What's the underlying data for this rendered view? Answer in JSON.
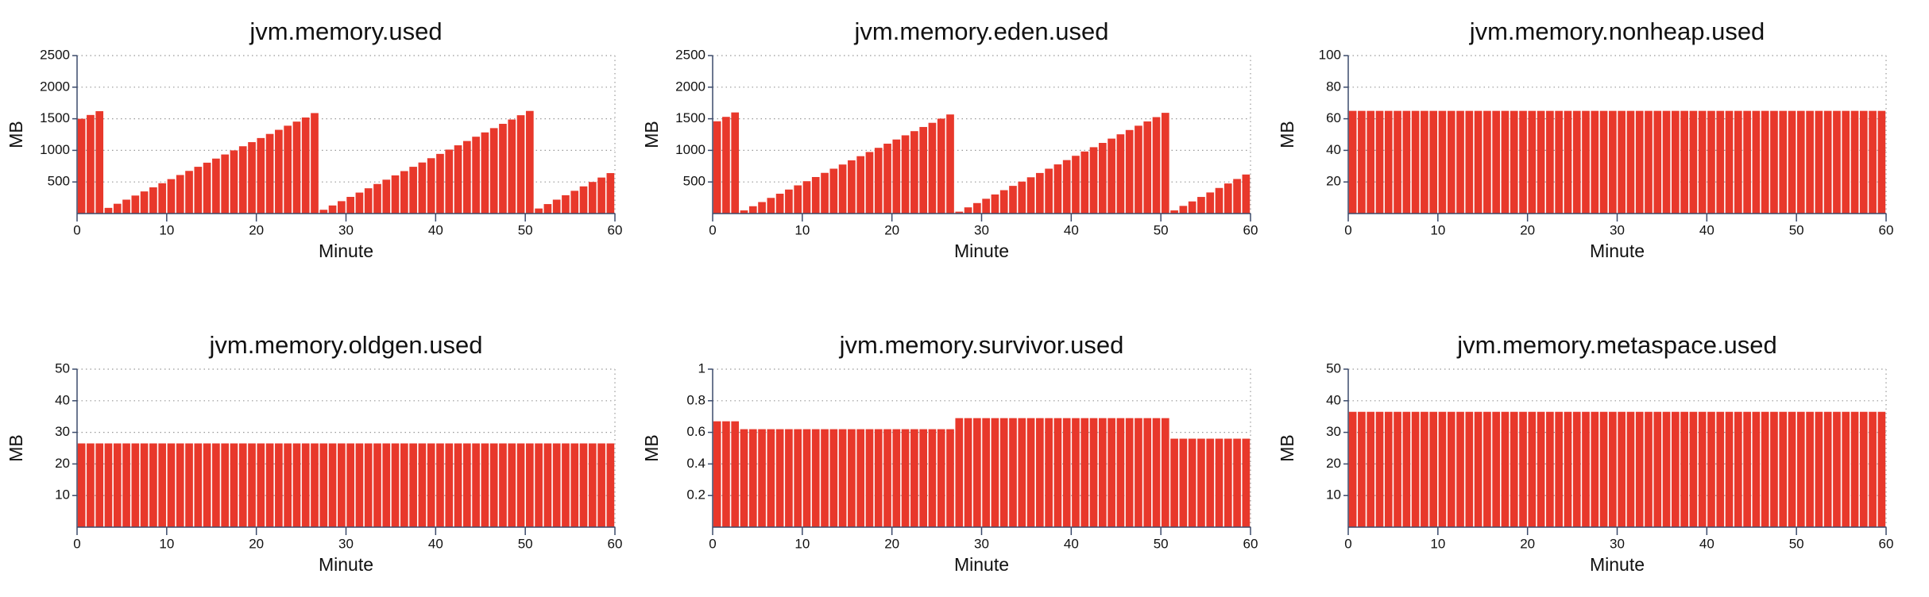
{
  "chart_data": [
    {
      "type": "bar",
      "title": "jvm.memory.used",
      "xlabel": "Minute",
      "ylabel": "MB",
      "color": "#e8382b",
      "grid": true,
      "x": [
        0,
        1,
        2,
        3,
        4,
        5,
        6,
        7,
        8,
        9,
        10,
        11,
        12,
        13,
        14,
        15,
        16,
        17,
        18,
        19,
        20,
        21,
        22,
        23,
        24,
        25,
        26,
        27,
        28,
        29,
        30,
        31,
        32,
        33,
        34,
        35,
        36,
        37,
        38,
        39,
        40,
        41,
        42,
        43,
        44,
        45,
        46,
        47,
        48,
        49,
        50,
        51,
        52,
        53,
        54,
        55,
        56,
        57,
        58,
        59
      ],
      "values": [
        1500,
        1560,
        1620,
        90,
        155,
        220,
        285,
        350,
        415,
        480,
        545,
        610,
        675,
        740,
        805,
        870,
        935,
        1000,
        1065,
        1130,
        1195,
        1260,
        1325,
        1390,
        1455,
        1520,
        1590,
        60,
        128,
        196,
        264,
        332,
        400,
        468,
        536,
        604,
        672,
        740,
        808,
        876,
        944,
        1012,
        1080,
        1148,
        1216,
        1284,
        1352,
        1420,
        1488,
        1556,
        1624,
        80,
        150,
        220,
        290,
        360,
        430,
        500,
        570,
        640
      ],
      "xlim": [
        0,
        60
      ],
      "xticks": [
        0,
        10,
        20,
        30,
        40,
        50,
        60
      ],
      "ylim": [
        0,
        2500
      ],
      "yticks": [
        500,
        1000,
        1500,
        2000,
        2500
      ]
    },
    {
      "type": "bar",
      "title": "jvm.memory.eden.used",
      "xlabel": "Minute",
      "ylabel": "MB",
      "color": "#e8382b",
      "grid": true,
      "x": [
        0,
        1,
        2,
        3,
        4,
        5,
        6,
        7,
        8,
        9,
        10,
        11,
        12,
        13,
        14,
        15,
        16,
        17,
        18,
        19,
        20,
        21,
        22,
        23,
        24,
        25,
        26,
        27,
        28,
        29,
        30,
        31,
        32,
        33,
        34,
        35,
        36,
        37,
        38,
        39,
        40,
        41,
        42,
        43,
        44,
        45,
        46,
        47,
        48,
        49,
        50,
        51,
        52,
        53,
        54,
        55,
        56,
        57,
        58,
        59
      ],
      "values": [
        1460,
        1530,
        1600,
        50,
        116,
        182,
        248,
        314,
        380,
        446,
        512,
        578,
        644,
        710,
        776,
        842,
        908,
        974,
        1040,
        1106,
        1172,
        1238,
        1304,
        1370,
        1436,
        1502,
        1568,
        30,
        98,
        166,
        234,
        302,
        370,
        438,
        506,
        574,
        642,
        710,
        778,
        846,
        914,
        982,
        1050,
        1118,
        1186,
        1254,
        1322,
        1390,
        1458,
        1526,
        1594,
        50,
        121,
        192,
        263,
        334,
        405,
        476,
        547,
        618
      ],
      "xlim": [
        0,
        60
      ],
      "xticks": [
        0,
        10,
        20,
        30,
        40,
        50,
        60
      ],
      "ylim": [
        0,
        2500
      ],
      "yticks": [
        500,
        1000,
        1500,
        2000,
        2500
      ]
    },
    {
      "type": "bar",
      "title": "jvm.memory.nonheap.used",
      "xlabel": "Minute",
      "ylabel": "MB",
      "color": "#e8382b",
      "grid": true,
      "x": [
        0,
        1,
        2,
        3,
        4,
        5,
        6,
        7,
        8,
        9,
        10,
        11,
        12,
        13,
        14,
        15,
        16,
        17,
        18,
        19,
        20,
        21,
        22,
        23,
        24,
        25,
        26,
        27,
        28,
        29,
        30,
        31,
        32,
        33,
        34,
        35,
        36,
        37,
        38,
        39,
        40,
        41,
        42,
        43,
        44,
        45,
        46,
        47,
        48,
        49,
        50,
        51,
        52,
        53,
        54,
        55,
        56,
        57,
        58,
        59
      ],
      "values": [
        65,
        65,
        65,
        65,
        65,
        65,
        65,
        65,
        65,
        65,
        65,
        65,
        65,
        65,
        65,
        65,
        65,
        65,
        65,
        65,
        65,
        65,
        65,
        65,
        65,
        65,
        65,
        65,
        65,
        65,
        65,
        65,
        65,
        65,
        65,
        65,
        65,
        65,
        65,
        65,
        65,
        65,
        65,
        65,
        65,
        65,
        65,
        65,
        65,
        65,
        65,
        65,
        65,
        65,
        65,
        65,
        65,
        65,
        65,
        65
      ],
      "xlim": [
        0,
        60
      ],
      "xticks": [
        0,
        10,
        20,
        30,
        40,
        50,
        60
      ],
      "ylim": [
        0,
        100
      ],
      "yticks": [
        20,
        40,
        60,
        80,
        100
      ]
    },
    {
      "type": "bar",
      "title": "jvm.memory.oldgen.used",
      "xlabel": "Minute",
      "ylabel": "MB",
      "color": "#e8382b",
      "grid": true,
      "x": [
        0,
        1,
        2,
        3,
        4,
        5,
        6,
        7,
        8,
        9,
        10,
        11,
        12,
        13,
        14,
        15,
        16,
        17,
        18,
        19,
        20,
        21,
        22,
        23,
        24,
        25,
        26,
        27,
        28,
        29,
        30,
        31,
        32,
        33,
        34,
        35,
        36,
        37,
        38,
        39,
        40,
        41,
        42,
        43,
        44,
        45,
        46,
        47,
        48,
        49,
        50,
        51,
        52,
        53,
        54,
        55,
        56,
        57,
        58,
        59
      ],
      "values": [
        26.5,
        26.5,
        26.5,
        26.5,
        26.5,
        26.5,
        26.5,
        26.5,
        26.5,
        26.5,
        26.5,
        26.5,
        26.5,
        26.5,
        26.5,
        26.5,
        26.5,
        26.5,
        26.5,
        26.5,
        26.5,
        26.5,
        26.5,
        26.5,
        26.5,
        26.5,
        26.5,
        26.5,
        26.5,
        26.5,
        26.5,
        26.5,
        26.5,
        26.5,
        26.5,
        26.5,
        26.5,
        26.5,
        26.5,
        26.5,
        26.5,
        26.5,
        26.5,
        26.5,
        26.5,
        26.5,
        26.5,
        26.5,
        26.5,
        26.5,
        26.5,
        26.5,
        26.5,
        26.5,
        26.5,
        26.5,
        26.5,
        26.5,
        26.5,
        26.5
      ],
      "xlim": [
        0,
        60
      ],
      "xticks": [
        0,
        10,
        20,
        30,
        40,
        50,
        60
      ],
      "ylim": [
        0,
        50
      ],
      "yticks": [
        10,
        20,
        30,
        40,
        50
      ]
    },
    {
      "type": "bar",
      "title": "jvm.memory.survivor.used",
      "xlabel": "Minute",
      "ylabel": "MB",
      "color": "#e8382b",
      "grid": true,
      "x": [
        0,
        1,
        2,
        3,
        4,
        5,
        6,
        7,
        8,
        9,
        10,
        11,
        12,
        13,
        14,
        15,
        16,
        17,
        18,
        19,
        20,
        21,
        22,
        23,
        24,
        25,
        26,
        27,
        28,
        29,
        30,
        31,
        32,
        33,
        34,
        35,
        36,
        37,
        38,
        39,
        40,
        41,
        42,
        43,
        44,
        45,
        46,
        47,
        48,
        49,
        50,
        51,
        52,
        53,
        54,
        55,
        56,
        57,
        58,
        59
      ],
      "values": [
        0.67,
        0.67,
        0.67,
        0.62,
        0.62,
        0.62,
        0.62,
        0.62,
        0.62,
        0.62,
        0.62,
        0.62,
        0.62,
        0.62,
        0.62,
        0.62,
        0.62,
        0.62,
        0.62,
        0.62,
        0.62,
        0.62,
        0.62,
        0.62,
        0.62,
        0.62,
        0.62,
        0.69,
        0.69,
        0.69,
        0.69,
        0.69,
        0.69,
        0.69,
        0.69,
        0.69,
        0.69,
        0.69,
        0.69,
        0.69,
        0.69,
        0.69,
        0.69,
        0.69,
        0.69,
        0.69,
        0.69,
        0.69,
        0.69,
        0.69,
        0.69,
        0.56,
        0.56,
        0.56,
        0.56,
        0.56,
        0.56,
        0.56,
        0.56,
        0.56
      ],
      "xlim": [
        0,
        60
      ],
      "xticks": [
        0,
        10,
        20,
        30,
        40,
        50,
        60
      ],
      "ylim": [
        0,
        1
      ],
      "yticks": [
        0.2,
        0.4,
        0.6,
        0.8,
        1
      ]
    },
    {
      "type": "bar",
      "title": "jvm.memory.metaspace.used",
      "xlabel": "Minute",
      "ylabel": "MB",
      "color": "#e8382b",
      "grid": true,
      "x": [
        0,
        1,
        2,
        3,
        4,
        5,
        6,
        7,
        8,
        9,
        10,
        11,
        12,
        13,
        14,
        15,
        16,
        17,
        18,
        19,
        20,
        21,
        22,
        23,
        24,
        25,
        26,
        27,
        28,
        29,
        30,
        31,
        32,
        33,
        34,
        35,
        36,
        37,
        38,
        39,
        40,
        41,
        42,
        43,
        44,
        45,
        46,
        47,
        48,
        49,
        50,
        51,
        52,
        53,
        54,
        55,
        56,
        57,
        58,
        59
      ],
      "values": [
        36.5,
        36.5,
        36.5,
        36.5,
        36.5,
        36.5,
        36.5,
        36.5,
        36.5,
        36.5,
        36.5,
        36.5,
        36.5,
        36.5,
        36.5,
        36.5,
        36.5,
        36.5,
        36.5,
        36.5,
        36.5,
        36.5,
        36.5,
        36.5,
        36.5,
        36.5,
        36.5,
        36.5,
        36.5,
        36.5,
        36.5,
        36.5,
        36.5,
        36.5,
        36.5,
        36.5,
        36.5,
        36.5,
        36.5,
        36.5,
        36.5,
        36.5,
        36.5,
        36.5,
        36.5,
        36.5,
        36.5,
        36.5,
        36.5,
        36.5,
        36.5,
        36.5,
        36.5,
        36.5,
        36.5,
        36.5,
        36.5,
        36.5,
        36.5,
        36.5
      ],
      "xlim": [
        0,
        60
      ],
      "xticks": [
        0,
        10,
        20,
        30,
        40,
        50,
        60
      ],
      "ylim": [
        0,
        50
      ],
      "yticks": [
        10,
        20,
        30,
        40,
        50
      ]
    }
  ]
}
